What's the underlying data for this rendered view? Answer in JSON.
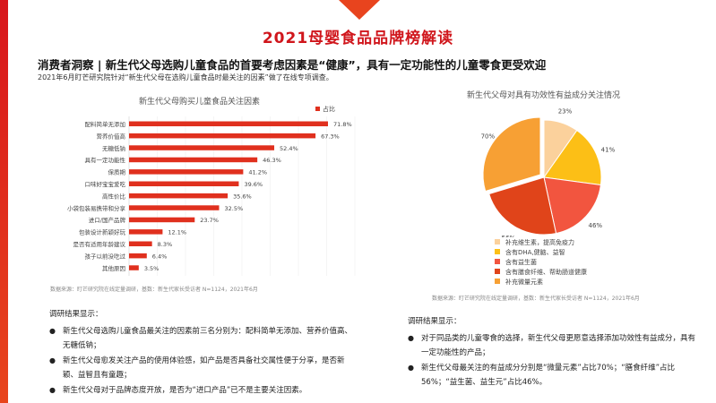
{
  "title": "2021母婴食品品牌榜解读",
  "headline": "消费者洞察 | 新生代父母选购儿童食品的首要考虑因素是“健康”，具有一定功能性的儿童零食更受欢迎",
  "subtitle": "2021年6月盯芒研究院针对“新生代父母在选购儿童食品时最关注的因素”做了在线专项调查。",
  "colors": {
    "accent": "#d0161c",
    "bar": "#e0301e"
  },
  "chart_data": [
    {
      "type": "bar",
      "orientation": "horizontal",
      "title": "新生代父母购买儿童食品关注因素",
      "legend": "占比",
      "legend_position": "top-right",
      "categories": [
        "配料简单无添加",
        "营养价值高",
        "无糖低钠",
        "具有一定功能性",
        "保质期",
        "口味好宝宝爱吃",
        "高性价比",
        "小袋包装易携带和分享",
        "进口/国产品牌",
        "包装设计新颖好玩",
        "是否有适用年龄建议",
        "孩子以前没吃过",
        "其他原因"
      ],
      "values": [
        71.8,
        67.3,
        52.4,
        46.3,
        41.2,
        39.6,
        35.6,
        32.5,
        23.7,
        12.1,
        8.3,
        6.4,
        3.5
      ],
      "labels": [
        "71.8%",
        "67.3%",
        "52.4%",
        "46.3%",
        "41.2%",
        "39.6%",
        "35.6%",
        "32.5%",
        "23.7%",
        "12.1%",
        "8.3%",
        "6.4%",
        "3.5%"
      ],
      "grid": true,
      "source": "数据来源：盯芒研究院在线定量调研，基数：新生代家长受访者 N=1124，2021年6月"
    },
    {
      "type": "pie",
      "title": "新生代父母对具有功效性有益成分关注情况",
      "categories": [
        "补充维生素，提高免疫力",
        "含有DHA,健脑、益智",
        "含有益生菌",
        "含有膳食纤维、帮助肠道健康",
        "补充微量元素"
      ],
      "values": [
        23,
        41,
        46,
        56,
        70
      ],
      "labels": [
        "23%",
        "41%",
        "46%",
        "56%",
        "70%"
      ],
      "colors": [
        "#fbd19c",
        "#fcbf16",
        "#f2553f",
        "#e0441a",
        "#f7a034"
      ],
      "legend_position": "bottom",
      "source": "数据来源：盯芒研究院在线定量调研，基数：新生代家长受访者 N=1124，2021年6月"
    }
  ],
  "left_findings": {
    "heading": "调研结果显示：",
    "items": [
      "新生代父母选购儿童食品最关注的因素前三名分别为：配料简单无添加、营养价值高、无糖低钠；",
      "新生代父母愈发关注产品的使用体验感，如产品是否具备社交属性便于分享，是否新颖、益智且有童趣；",
      "新生代父母对于品牌态度开放，是否为“进口产品”已不是主要关注因素。"
    ]
  },
  "right_findings": {
    "heading": "调研结果显示：",
    "items": [
      "对于同品类的儿童零食的选择，新生代父母更愿意选择添加功效性有益成分，具有一定功能性的产品；",
      "新生代父母最关注的有益成分分别是“微量元素”占比70%；“膳食纤维”占比56%；“益生菌、益生元”占比46%。"
    ]
  }
}
